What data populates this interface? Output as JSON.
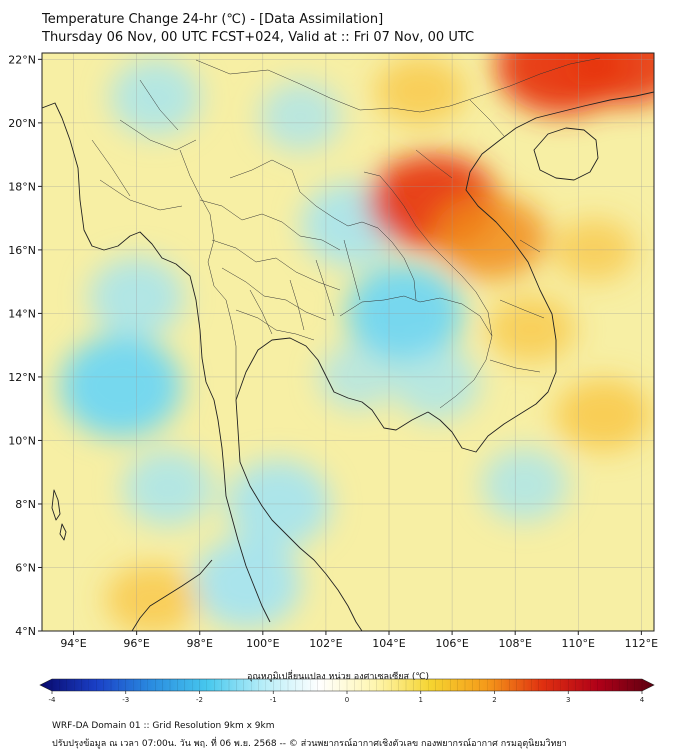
{
  "header": {
    "title_line1": "Temperature Change 24-hr (℃) - [Data Assimilation]",
    "title_line2": "Thursday 06 Nov, 00 UTC FCST+024, Valid at :: Fri 07 Nov, 00 UTC"
  },
  "map": {
    "lon_labels": [
      "94°E",
      "96°E",
      "98°E",
      "100°E",
      "102°E",
      "104°E",
      "106°E",
      "108°E",
      "110°E",
      "112°E"
    ],
    "lon_values": [
      94,
      96,
      98,
      100,
      102,
      104,
      106,
      108,
      110,
      112
    ],
    "lat_labels": [
      "22°N",
      "20°N",
      "18°N",
      "16°N",
      "14°N",
      "12°N",
      "10°N",
      "8°N",
      "6°N",
      "4°N"
    ],
    "lat_values": [
      22,
      20,
      18,
      16,
      14,
      12,
      10,
      8,
      6,
      4
    ],
    "lon_range": [
      93,
      112.4
    ],
    "lat_range": [
      4,
      22.2
    ],
    "gridlines": true
  },
  "colorbar": {
    "label": "อุณหภูมิเปลี่ยนแปลง หน่วย องศาเซลเซียส (℃)",
    "tick_labels": [
      "-4",
      "-3",
      "-2",
      "-1",
      "0",
      "1",
      "2",
      "3",
      "4"
    ],
    "tick_values": [
      -4,
      -3,
      -2,
      -1,
      0,
      1,
      2,
      3,
      4
    ],
    "range": [
      -4,
      4
    ],
    "colors": [
      "#08086b",
      "#1a3fc6",
      "#2a8ce0",
      "#47c8ee",
      "#b8eef8",
      "#ffffff",
      "#fff6b0",
      "#f5d430",
      "#f59a1a",
      "#e03010",
      "#b00018",
      "#5c0010"
    ]
  },
  "field": {
    "background_color": "#f7efa4",
    "cool_color": "#9fe3f6",
    "warm_color": "#f9c23c",
    "hot_color": "#e63512",
    "cool_regions": [
      {
        "lon": 96.6,
        "lat": 20.8,
        "level": -0.7
      },
      {
        "lon": 95.5,
        "lat": 11.7,
        "level": -1.4
      },
      {
        "lon": 96.0,
        "lat": 14.5,
        "level": -0.8
      },
      {
        "lon": 97.0,
        "lat": 8.5,
        "level": -0.7
      },
      {
        "lon": 100.5,
        "lat": 8.0,
        "level": -1.0
      },
      {
        "lon": 99.5,
        "lat": 5.5,
        "level": -1.1
      },
      {
        "lon": 104.5,
        "lat": 14.0,
        "level": -1.3
      },
      {
        "lon": 102.8,
        "lat": 16.8,
        "level": -0.9
      },
      {
        "lon": 101.2,
        "lat": 20.2,
        "level": -0.5
      },
      {
        "lon": 105.5,
        "lat": 11.8,
        "level": -0.6
      },
      {
        "lon": 108.3,
        "lat": 8.6,
        "level": -0.6
      },
      {
        "lon": 103.0,
        "lat": 12.0,
        "level": -0.4
      }
    ],
    "warm_regions": [
      {
        "lon": 105.4,
        "lat": 17.5,
        "level": 2.8
      },
      {
        "lon": 107.2,
        "lat": 16.4,
        "level": 2.2
      },
      {
        "lon": 109.5,
        "lat": 21.8,
        "level": 2.9
      },
      {
        "lon": 111.5,
        "lat": 22.0,
        "level": 2.6
      },
      {
        "lon": 105.0,
        "lat": 21.0,
        "level": 1.4
      },
      {
        "lon": 110.8,
        "lat": 10.8,
        "level": 1.6
      },
      {
        "lon": 108.5,
        "lat": 13.5,
        "level": 1.3
      },
      {
        "lon": 96.5,
        "lat": 5.0,
        "level": 1.5
      },
      {
        "lon": 110.5,
        "lat": 16.0,
        "level": 1.1
      }
    ]
  },
  "footer": {
    "line1": "WRF-DA Domain 01 :: Grid Resolution 9km x 9km",
    "line2": "ปรับปรุงข้อมูล ณ เวลา 07:00น. วัน พฤ. ที่ 06 พ.ย. 2568 -- © ส่วนพยากรณ์อากาศเชิงตัวเลข กองพยากรณ์อากาศ กรมอุตุนิยมวิทยา"
  }
}
